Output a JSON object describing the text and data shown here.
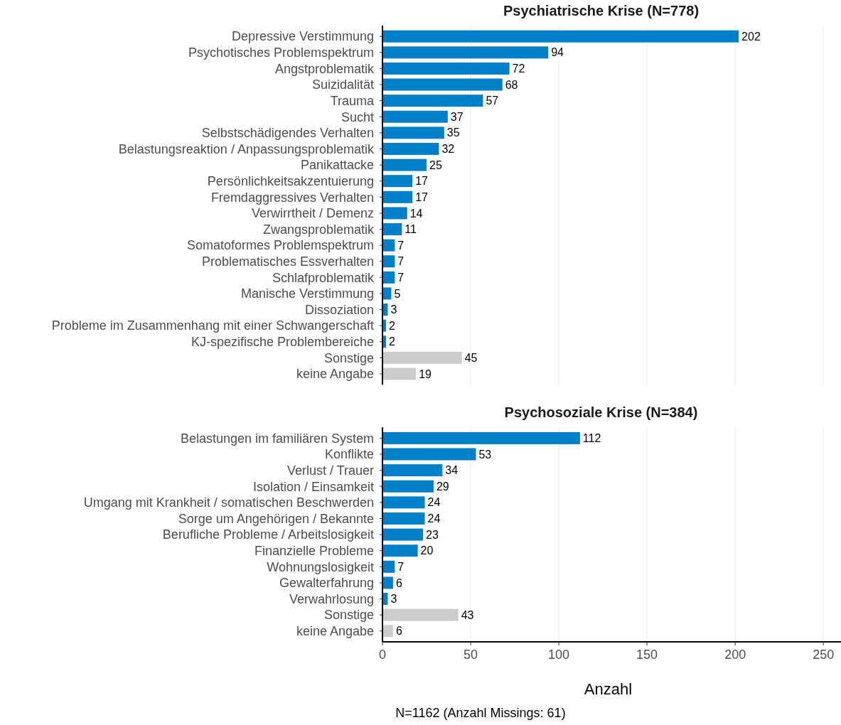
{
  "chart_data": [
    {
      "type": "bar",
      "orientation": "horizontal",
      "title": "Psychiatrische Krise (N=778)",
      "categories": [
        "Depressive Verstimmung",
        "Psychotisches Problemspektrum",
        "Angstproblematik",
        "Suizidalität",
        "Trauma",
        "Sucht",
        "Selbstschädigendes Verhalten",
        "Belastungsreaktion / Anpassungsproblematik",
        "Panikattacke",
        "Persönlichkeitsakzentuierung",
        "Fremdaggressives Verhalten",
        "Verwirrtheit / Demenz",
        "Zwangsproblematik",
        "Somatoformes Problemspektrum",
        "Problematisches Essverhalten",
        "Schlafproblematik",
        "Manische Verstimmung",
        "Dissoziation",
        "Probleme im Zusammenhang mit einer Schwangerschaft",
        "KJ-spezifische Problembereiche",
        "Sonstige",
        "keine Angabe"
      ],
      "values": [
        202,
        94,
        72,
        68,
        57,
        37,
        35,
        32,
        25,
        17,
        17,
        14,
        11,
        7,
        7,
        7,
        5,
        3,
        2,
        2,
        45,
        19
      ],
      "colors": [
        "#0080c8",
        "#0080c8",
        "#0080c8",
        "#0080c8",
        "#0080c8",
        "#0080c8",
        "#0080c8",
        "#0080c8",
        "#0080c8",
        "#0080c8",
        "#0080c8",
        "#0080c8",
        "#0080c8",
        "#0080c8",
        "#0080c8",
        "#0080c8",
        "#0080c8",
        "#0080c8",
        "#0080c8",
        "#0080c8",
        "#cccccc",
        "#cccccc"
      ],
      "xlim": [
        0,
        260
      ],
      "xticks": [
        0,
        50,
        100,
        150,
        200,
        250
      ],
      "grid": "x",
      "data_labels": true,
      "tick_labels": "y"
    },
    {
      "type": "bar",
      "orientation": "horizontal",
      "title": "Psychosoziale Krise (N=384)",
      "categories": [
        "Belastungen im familiären System",
        "Konflikte",
        "Verlust / Trauer",
        "Isolation / Einsamkeit",
        "Umgang mit Krankheit / somatischen Beschwerden",
        "Sorge um Angehörigen / Bekannte",
        "Berufliche Probleme / Arbeitslosigkeit",
        "Finanzielle Probleme",
        "Wohnungslosigkeit",
        "Gewalterfahrung",
        "Verwahrlosung",
        "Sonstige",
        "keine Angabe"
      ],
      "values": [
        112,
        53,
        34,
        29,
        24,
        24,
        23,
        20,
        7,
        6,
        3,
        43,
        6
      ],
      "colors": [
        "#0080c8",
        "#0080c8",
        "#0080c8",
        "#0080c8",
        "#0080c8",
        "#0080c8",
        "#0080c8",
        "#0080c8",
        "#0080c8",
        "#0080c8",
        "#0080c8",
        "#cccccc",
        "#cccccc"
      ],
      "xlim": [
        0,
        260
      ],
      "xticks": [
        0,
        50,
        100,
        150,
        200,
        250
      ],
      "grid": "x",
      "data_labels": true,
      "xlabel": "Anzahl",
      "annotations": [
        "N=1162 (Anzahl Missings: 61)"
      ]
    }
  ]
}
